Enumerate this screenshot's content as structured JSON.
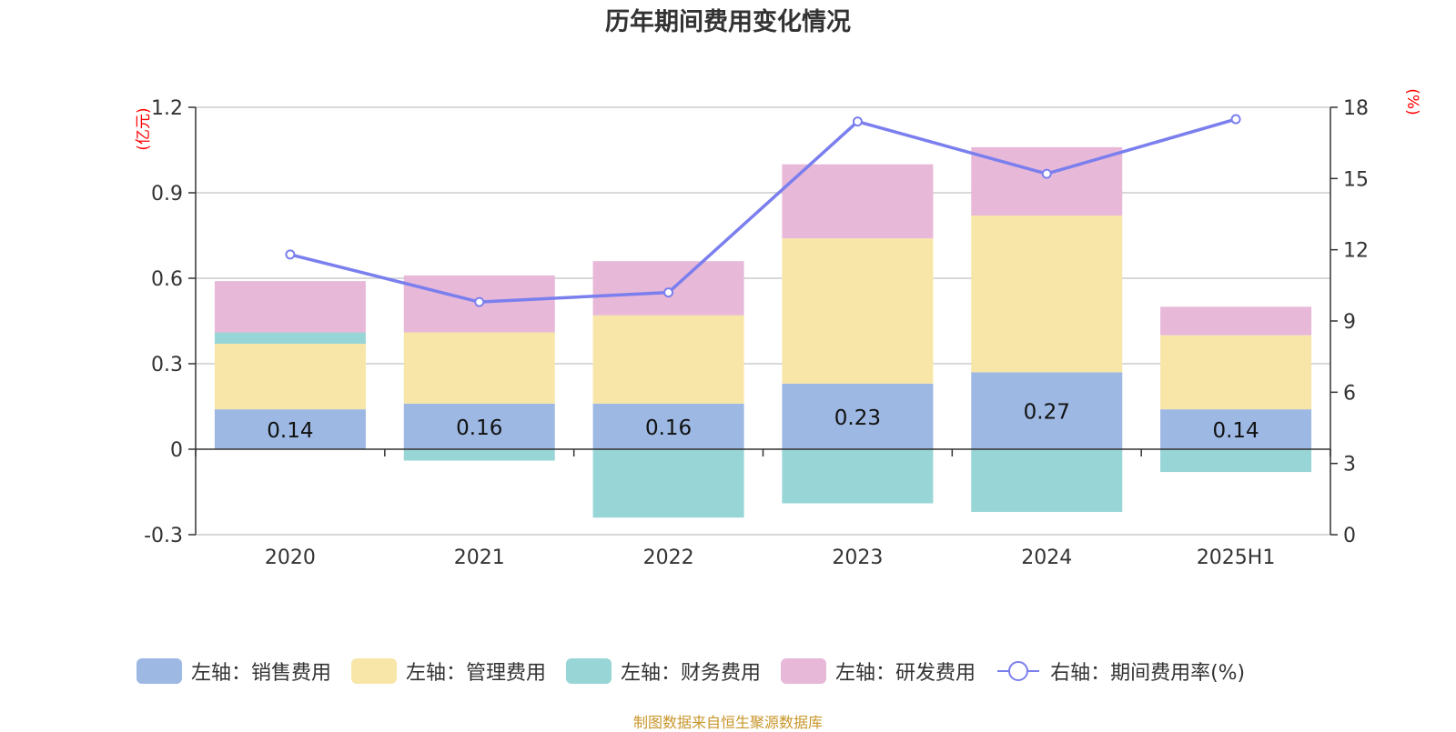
{
  "chart_data": {
    "type": "bar",
    "title": "历年期间费用变化情况",
    "categories": [
      "2020",
      "2021",
      "2022",
      "2023",
      "2024",
      "2025H1"
    ],
    "left_axis": {
      "unit": "(亿元)",
      "ylim": [
        -0.3,
        1.2
      ],
      "ticks": [
        "1.2",
        "0.9",
        "0.6",
        "0.3",
        "0",
        "-0.3"
      ]
    },
    "right_axis": {
      "unit": "(%)",
      "ylim": [
        0,
        18
      ],
      "ticks": [
        "18",
        "15",
        "12",
        "9",
        "6",
        "3",
        "0"
      ]
    },
    "stacked": true,
    "series": [
      {
        "name": "左轴：销售费用",
        "axis": "left",
        "color": "#9db8e3",
        "values": [
          0.14,
          0.16,
          0.16,
          0.23,
          0.27,
          0.14
        ],
        "labels": [
          "0.14",
          "0.16",
          "0.16",
          "0.23",
          "0.27",
          "0.14"
        ]
      },
      {
        "name": "左轴：管理费用",
        "axis": "left",
        "color": "#f8e6a8",
        "values": [
          0.23,
          0.25,
          0.31,
          0.51,
          0.55,
          0.26
        ]
      },
      {
        "name": "左轴：财务费用",
        "axis": "left",
        "color": "#98d5d6",
        "values": [
          0.04,
          -0.04,
          -0.24,
          -0.19,
          -0.22,
          -0.08
        ]
      },
      {
        "name": "左轴：研发费用",
        "axis": "left",
        "color": "#e8b8d9",
        "values": [
          0.18,
          0.2,
          0.19,
          0.26,
          0.24,
          0.1
        ]
      }
    ],
    "line": {
      "name": "右轴：期间费用率(%)",
      "axis": "right",
      "color": "#7b7fee",
      "values": [
        11.8,
        9.8,
        10.2,
        17.4,
        15.2,
        17.5
      ]
    },
    "grid": true,
    "legend_position": "bottom"
  },
  "source": "制图数据来自恒生聚源数据库"
}
